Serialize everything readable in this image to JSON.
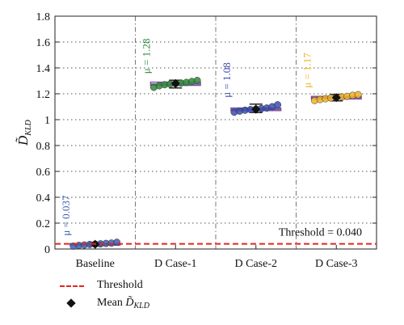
{
  "chart_data": {
    "type": "box",
    "categories": [
      "Baseline",
      "D Case-1",
      "D Case-2",
      "D Case-3"
    ],
    "ylabel": "D̃KLD",
    "ylabel_main": "D̃",
    "ylabel_sub": "KLD",
    "ylim": [
      0,
      1.8
    ],
    "yticks": [
      0,
      0.2,
      0.4,
      0.6,
      0.8,
      1,
      1.2,
      1.4,
      1.6,
      1.8
    ],
    "ytick_labels": [
      "0",
      "0.2",
      "0.4",
      "0.6",
      "0.8",
      "1",
      "1.2",
      "1.4",
      "1.6",
      "1.8"
    ],
    "grid": true,
    "series": [
      {
        "category": "Baseline",
        "color": "#3a5fb0",
        "box": {
          "q1": 0.03,
          "median": 0.036,
          "q3": 0.042,
          "whisker_low": 0.022,
          "whisker_high": 0.052
        },
        "mean": 0.037,
        "mean_label": "μ = 0.037",
        "points": [
          0.022,
          0.028,
          0.031,
          0.035,
          0.037,
          0.04,
          0.043,
          0.046,
          0.052
        ]
      },
      {
        "category": "D Case-1",
        "color": "#2e8b3a",
        "box": {
          "q1": 1.265,
          "median": 1.275,
          "q3": 1.29,
          "whisker_low": 1.245,
          "whisker_high": 1.305
        },
        "mean": 1.28,
        "mean_label": "μ = 1.28",
        "points": [
          1.25,
          1.262,
          1.27,
          1.275,
          1.278,
          1.283,
          1.288,
          1.295,
          1.303
        ]
      },
      {
        "category": "D Case-2",
        "color": "#3a4fb0",
        "box": {
          "q1": 1.07,
          "median": 1.08,
          "q3": 1.09,
          "whisker_low": 1.055,
          "whisker_high": 1.12
        },
        "mean": 1.08,
        "mean_label": "μ = 1.08",
        "points": [
          1.058,
          1.066,
          1.073,
          1.078,
          1.082,
          1.086,
          1.09,
          1.1,
          1.115
        ]
      },
      {
        "category": "D Case-3",
        "color": "#f0b323",
        "box": {
          "q1": 1.16,
          "median": 1.17,
          "q3": 1.18,
          "whisker_low": 1.145,
          "whisker_high": 1.195
        },
        "mean": 1.17,
        "mean_label": "μ = 1.17",
        "points": [
          1.148,
          1.156,
          1.162,
          1.168,
          1.172,
          1.176,
          1.18,
          1.188,
          1.193
        ]
      }
    ],
    "threshold": {
      "value": 0.04,
      "label": "Threshold = 0.040",
      "color": "#e8231f"
    },
    "legend": {
      "placement": "bottom-left",
      "threshold_label": "Threshold",
      "mean_label_prefix": "Mean ",
      "mean_label_main": "D̃",
      "mean_label_sub": "KLD"
    }
  }
}
